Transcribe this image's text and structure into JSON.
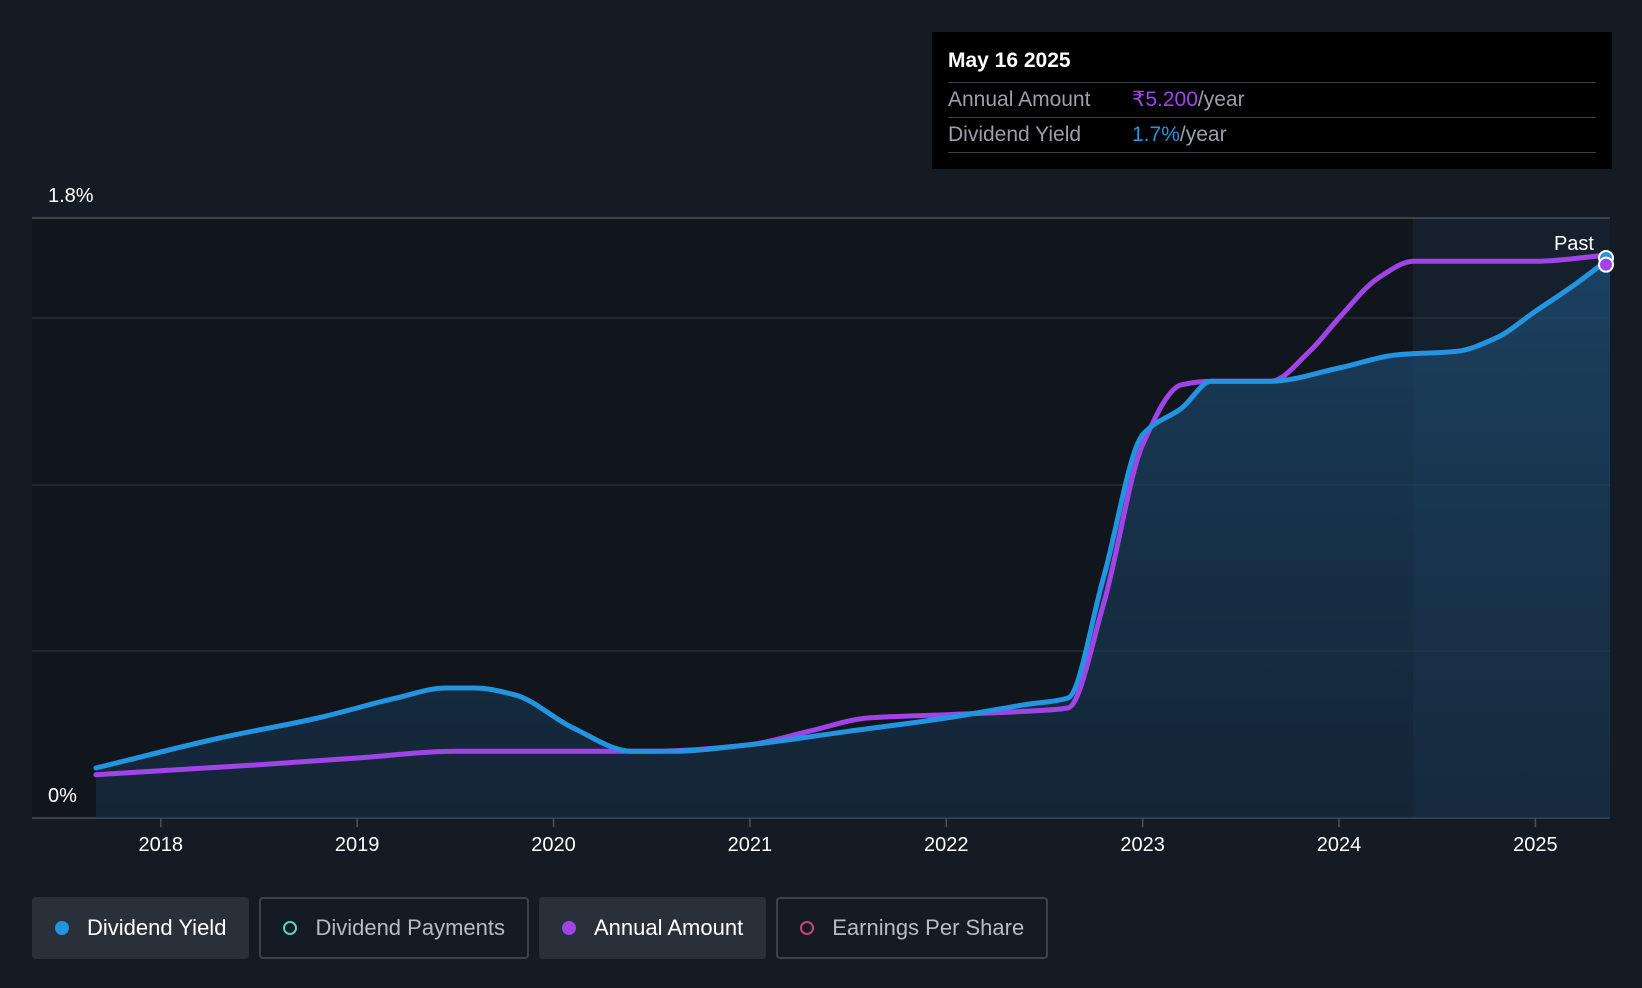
{
  "chart_data": {
    "type": "line",
    "y_tick_labels": [
      "1.8%",
      "0%"
    ],
    "x_tick_labels": [
      "2018",
      "2019",
      "2020",
      "2021",
      "2022",
      "2023",
      "2024",
      "2025"
    ],
    "x_range": [
      2017.67,
      2025.38
    ],
    "ylim": [
      0,
      1.8
    ],
    "past_label": "Past",
    "grid": true,
    "legend_position": "bottom",
    "series": [
      {
        "name": "Dividend Yield",
        "color": "#2394df",
        "area": true,
        "x": [
          2017.67,
          2018.3,
          2018.8,
          2019.2,
          2019.45,
          2019.6,
          2019.8,
          2020.1,
          2020.4,
          2020.6,
          2021.0,
          2021.5,
          2022.0,
          2022.4,
          2022.62,
          2022.8,
          2023.0,
          2023.2,
          2023.35,
          2023.65,
          2024.0,
          2024.3,
          2024.6,
          2024.8,
          2025.0,
          2025.2,
          2025.38
        ],
        "y": [
          0.15,
          0.24,
          0.3,
          0.36,
          0.39,
          0.39,
          0.37,
          0.27,
          0.2,
          0.2,
          0.22,
          0.26,
          0.3,
          0.34,
          0.36,
          0.72,
          1.15,
          1.23,
          1.31,
          1.31,
          1.35,
          1.39,
          1.4,
          1.44,
          1.52,
          1.6,
          1.68
        ]
      },
      {
        "name": "Annual Amount",
        "color": "#a044e8",
        "area": false,
        "x": [
          2017.67,
          2018.5,
          2019.0,
          2019.5,
          2020.0,
          2020.5,
          2021.0,
          2021.3,
          2021.6,
          2022.0,
          2022.4,
          2022.62,
          2022.8,
          2023.0,
          2023.2,
          2023.35,
          2023.65,
          2023.85,
          2024.0,
          2024.2,
          2024.38,
          2024.7,
          2025.0,
          2025.38
        ],
        "y": [
          0.13,
          0.16,
          0.18,
          0.2,
          0.2,
          0.2,
          0.22,
          0.26,
          0.3,
          0.31,
          0.32,
          0.33,
          0.64,
          1.12,
          1.3,
          1.31,
          1.31,
          1.4,
          1.5,
          1.62,
          1.67,
          1.67,
          1.67,
          1.69
        ]
      }
    ]
  },
  "tooltip": {
    "date": "May 16 2025",
    "rows": [
      {
        "label": "Annual Amount",
        "value": "₹5.200",
        "suffix": "/year",
        "color": "#a044e8"
      },
      {
        "label": "Dividend Yield",
        "value": "1.7%",
        "suffix": "/year",
        "color": "#2394df"
      }
    ]
  },
  "legend": [
    {
      "label": "Dividend Yield",
      "active": true,
      "dot_color": "#2394df",
      "hollow": false
    },
    {
      "label": "Dividend Payments",
      "active": false,
      "dot_color": "#5ad2c2",
      "hollow": true
    },
    {
      "label": "Annual Amount",
      "active": true,
      "dot_color": "#a044e8",
      "hollow": false
    },
    {
      "label": "Earnings Per Share",
      "active": false,
      "dot_color": "#c2487a",
      "hollow": true
    }
  ]
}
